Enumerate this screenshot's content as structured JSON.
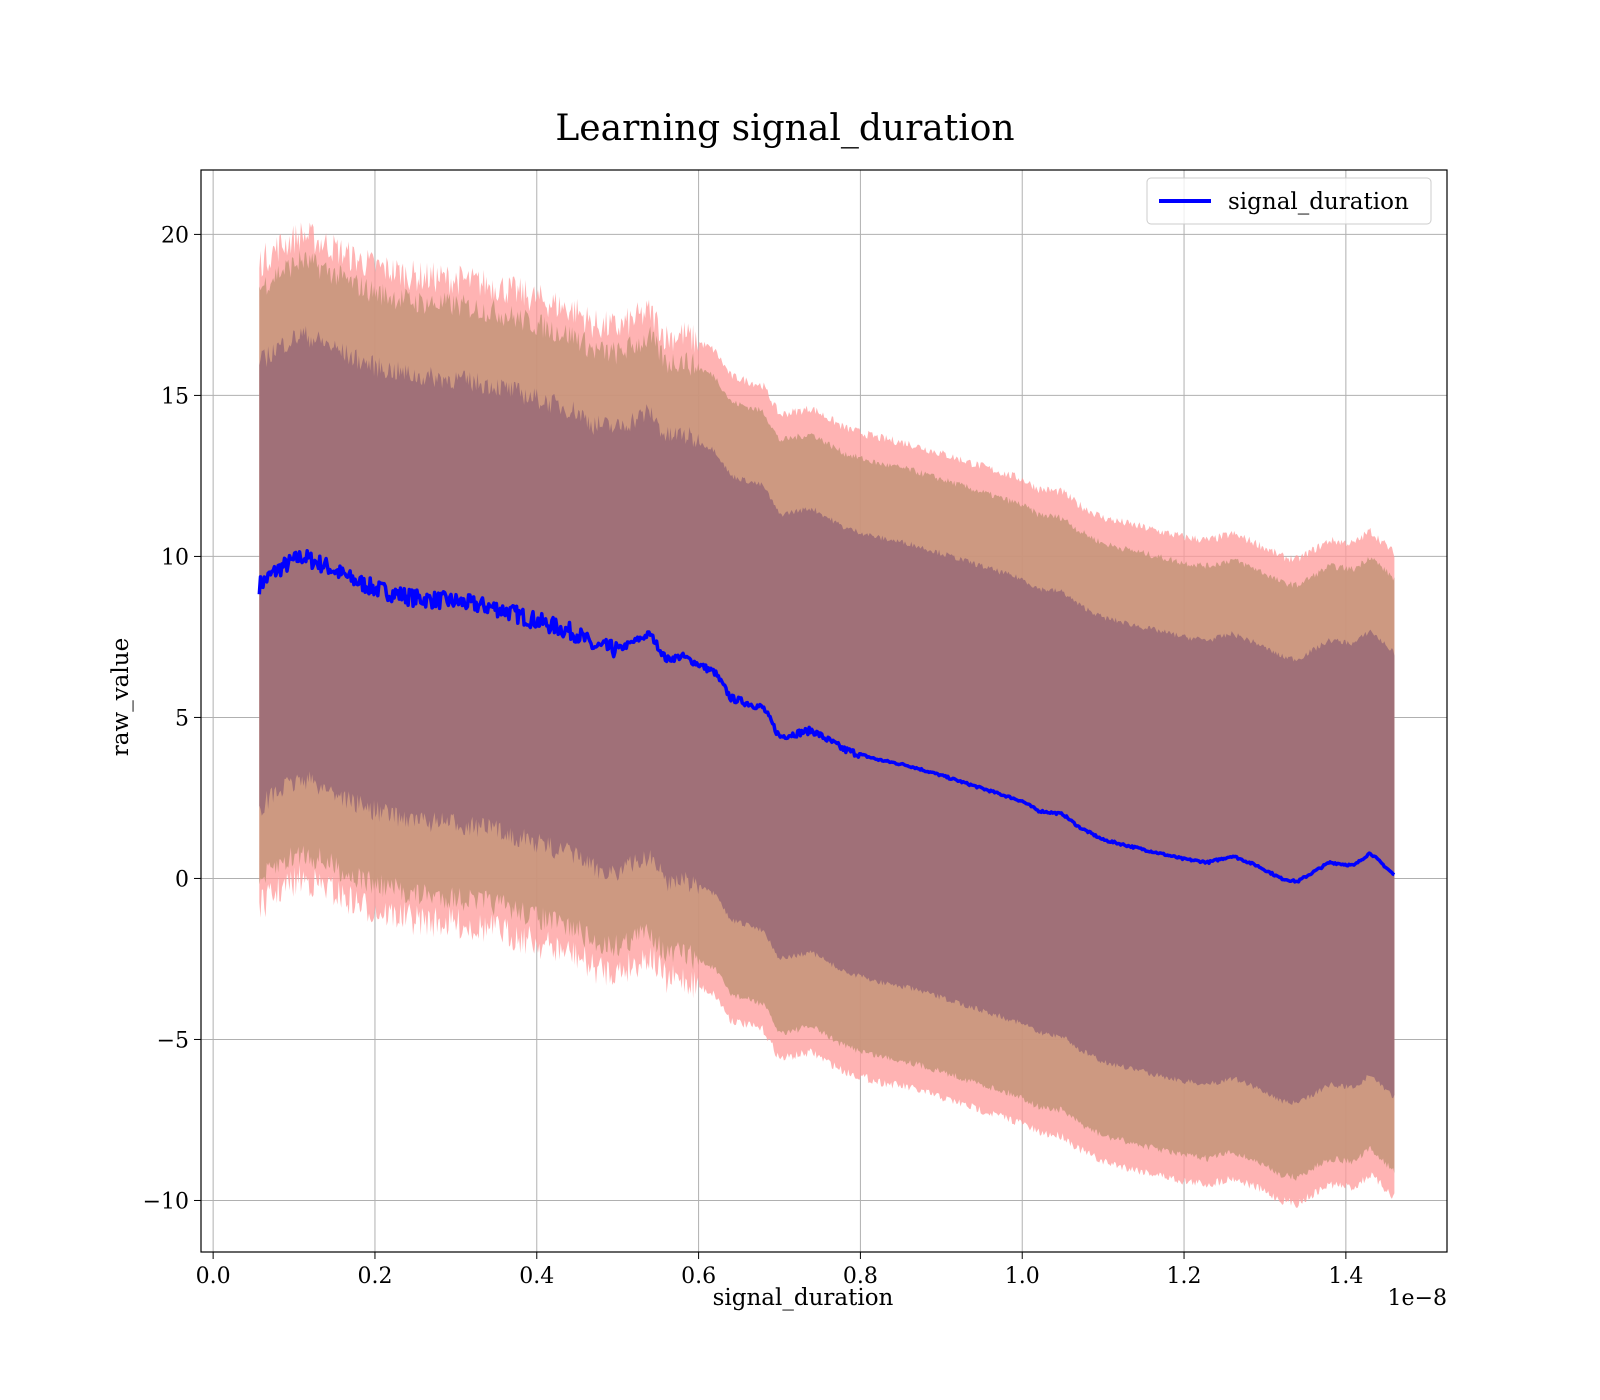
{
  "chart_data": {
    "type": "area",
    "title": "Learning signal_duration",
    "xlabel": "signal_duration",
    "ylabel": "raw_value",
    "x_offset_label": "1e−8",
    "xlim": [
      -0.015,
      1.525
    ],
    "ylim": [
      -11.6,
      22.0
    ],
    "x_ticks": [
      0.0,
      0.2,
      0.4,
      0.6,
      0.8,
      1.0,
      1.2,
      1.4
    ],
    "x_tick_labels": [
      "0.0",
      "0.2",
      "0.4",
      "0.6",
      "0.8",
      "1.0",
      "1.2",
      "1.4"
    ],
    "y_ticks": [
      -10,
      -5,
      0,
      5,
      10,
      15,
      20
    ],
    "y_tick_labels": [
      "−10",
      "−5",
      "0",
      "5",
      "10",
      "15",
      "20"
    ],
    "grid": true,
    "legend": {
      "placement": "top-right",
      "entries": [
        "signal_duration"
      ]
    },
    "colors": {
      "line": "#0000ff",
      "band_outer": "#ff9999",
      "band_middle": "#c49478",
      "band_inner": "#a07078"
    },
    "series": [
      {
        "name": "signal_duration",
        "x": [
          0.057,
          0.08,
          0.11,
          0.14,
          0.17,
          0.2,
          0.25,
          0.3,
          0.35,
          0.4,
          0.45,
          0.47,
          0.5,
          0.54,
          0.56,
          0.58,
          0.62,
          0.64,
          0.68,
          0.7,
          0.74,
          0.78,
          0.82,
          0.86,
          0.9,
          0.95,
          1.0,
          1.02,
          1.05,
          1.07,
          1.1,
          1.15,
          1.2,
          1.23,
          1.26,
          1.29,
          1.32,
          1.34,
          1.38,
          1.41,
          1.43,
          1.46
        ],
        "y": [
          9.1,
          9.6,
          10.0,
          9.7,
          9.3,
          9.0,
          8.7,
          8.6,
          8.4,
          8.0,
          7.6,
          7.2,
          7.1,
          7.6,
          6.8,
          6.9,
          6.4,
          5.6,
          5.3,
          4.4,
          4.6,
          4.0,
          3.7,
          3.5,
          3.2,
          2.8,
          2.4,
          2.1,
          2.0,
          1.6,
          1.2,
          0.9,
          0.6,
          0.5,
          0.7,
          0.4,
          0.0,
          -0.1,
          0.5,
          0.4,
          0.8,
          0.1
        ]
      }
    ],
    "bands": [
      {
        "role": "outer",
        "half_width": 10.0,
        "jitter": 0.45
      },
      {
        "role": "middle",
        "half_width": 9.2,
        "jitter": 0.35
      },
      {
        "role": "inner",
        "half_width": 6.9,
        "jitter": 0.3
      }
    ]
  }
}
